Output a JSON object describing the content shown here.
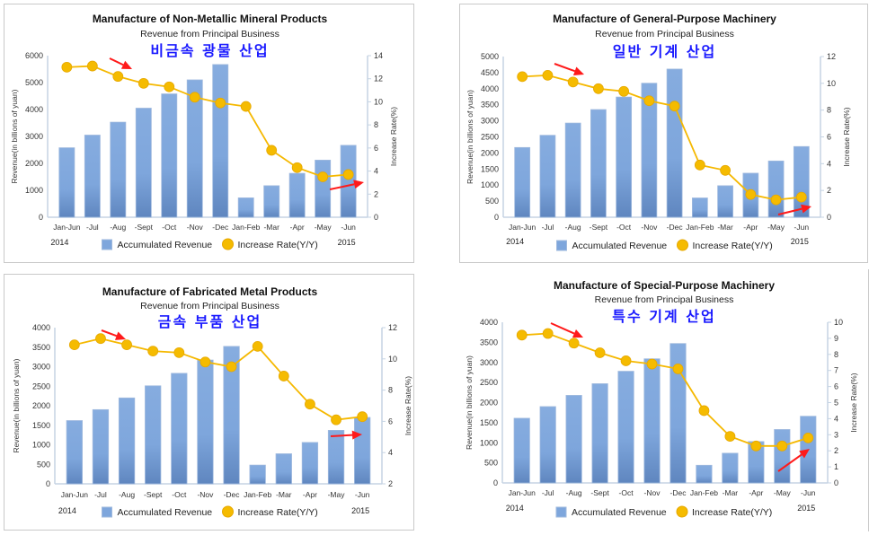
{
  "legend": {
    "bar_label": "Accumulated Revenue",
    "line_label": "Increase Rate(Y/Y)"
  },
  "colors": {
    "bar": "#7ea6dc",
    "bar_dark": "#5f86bf",
    "line": "#f5b800",
    "arrow": "#ff1a1a",
    "axis": "#c5d3e3",
    "korean_title": "#1a1aff"
  },
  "chart_data": [
    {
      "type": "bar+line",
      "title": "Manufacture of Non-Metallic Mineral Products",
      "subtitle": "Revenue from Principal Business",
      "korean_label": "비금속 광물 산업",
      "categories": [
        "Jan-Jun",
        "-Jul",
        "-Aug",
        "-Sept",
        "-Oct",
        "-Nov",
        "-Dec",
        "Jan-Feb",
        "-Mar",
        "-Apr",
        "-May",
        "-Jun"
      ],
      "year_labels": [
        "2014",
        "2015"
      ],
      "ylabel": "Revenue(in billions of yuan)",
      "y2label": "Increase Rate(%)",
      "ylim": [
        0,
        6000
      ],
      "yticks": [
        0,
        1000,
        2000,
        3000,
        4000,
        5000,
        6000
      ],
      "y2lim": [
        0,
        14
      ],
      "y2ticks": [
        0,
        2,
        4,
        6,
        8,
        10,
        12,
        14
      ],
      "series": [
        {
          "name": "Accumulated Revenue",
          "type": "bar",
          "values": [
            2580,
            3050,
            3530,
            4050,
            4580,
            5100,
            5670,
            720,
            1170,
            1630,
            2120,
            2670
          ]
        },
        {
          "name": "Increase Rate(Y/Y)",
          "type": "line",
          "axis": "right",
          "values": [
            13.0,
            13.1,
            12.2,
            11.6,
            11.3,
            10.4,
            9.9,
            9.6,
            5.8,
            4.3,
            3.5,
            3.7
          ]
        }
      ],
      "annotations": [
        "red arrow pointing down-right near -Aug",
        "red arrow pointing right near -Jun"
      ]
    },
    {
      "type": "bar+line",
      "title": "Manufacture of General-Purpose Machinery",
      "subtitle": "Revenue from Principal Business",
      "korean_label": "일반 기계 산업",
      "categories": [
        "Jan-Jun",
        "-Jul",
        "-Aug",
        "-Sept",
        "-Oct",
        "-Nov",
        "-Dec",
        "Jan-Feb",
        "-Mar",
        "-Apr",
        "-May",
        "-Jun"
      ],
      "year_labels": [
        "2014",
        "2015"
      ],
      "ylabel": "Revenue(in billions of yuan)",
      "y2label": "Increase Rate(%)",
      "ylim": [
        0,
        5000
      ],
      "yticks": [
        0,
        500,
        1000,
        1500,
        2000,
        2500,
        3000,
        3500,
        4000,
        4500,
        5000
      ],
      "y2lim": [
        0,
        12
      ],
      "y2ticks": [
        0,
        2,
        4,
        6,
        8,
        10,
        12
      ],
      "series": [
        {
          "name": "Accumulated Revenue",
          "type": "bar",
          "values": [
            2170,
            2550,
            2930,
            3350,
            3740,
            4170,
            4610,
            600,
            980,
            1370,
            1750,
            2200
          ]
        },
        {
          "name": "Increase Rate(Y/Y)",
          "type": "line",
          "axis": "right",
          "values": [
            10.5,
            10.6,
            10.1,
            9.6,
            9.4,
            8.7,
            8.3,
            3.9,
            3.5,
            1.7,
            1.3,
            1.5
          ]
        }
      ],
      "annotations": [
        "red arrow pointing down-right near -Aug",
        "red arrow pointing right near -Jun"
      ]
    },
    {
      "type": "bar+line",
      "title": "Manufacture of Fabricated Metal Products",
      "subtitle": "Revenue from Principal Business",
      "korean_label": "금속 부품 산업",
      "categories": [
        "Jan-Jun",
        "-Jul",
        "-Aug",
        "-Sept",
        "-Oct",
        "-Nov",
        "-Dec",
        "Jan-Feb",
        "-Mar",
        "-Apr",
        "-May",
        "-Jun"
      ],
      "year_labels": [
        "2014",
        "2015"
      ],
      "ylabel": "Revenue(in billions of yuan)",
      "y2label": "Increase Rate(%)",
      "ylim": [
        0,
        4000
      ],
      "yticks": [
        0,
        500,
        1000,
        1500,
        2000,
        2500,
        3000,
        3500,
        4000
      ],
      "y2lim": [
        2,
        12
      ],
      "y2ticks": [
        2,
        4,
        6,
        8,
        10,
        12
      ],
      "series": [
        {
          "name": "Accumulated Revenue",
          "type": "bar",
          "values": [
            1620,
            1900,
            2200,
            2510,
            2830,
            3170,
            3520,
            480,
            770,
            1060,
            1370,
            1700
          ]
        },
        {
          "name": "Increase Rate(Y/Y)",
          "type": "line",
          "axis": "right",
          "values": [
            10.9,
            11.3,
            10.9,
            10.5,
            10.4,
            9.8,
            9.5,
            10.8,
            8.9,
            7.1,
            6.1,
            6.3
          ]
        }
      ],
      "annotations": [
        "red arrow pointing down-right near -Aug",
        "red arrow pointing right near -Jun"
      ]
    },
    {
      "type": "bar+line",
      "title": "Manufacture of Special-Purpose Machinery",
      "subtitle": "Revenue from Principal Business",
      "korean_label": "특수 기계 산업",
      "categories": [
        "Jan-Jun",
        "-Jul",
        "-Aug",
        "-Sept",
        "-Oct",
        "-Nov",
        "-Dec",
        "Jan-Feb",
        "-Mar",
        "-Apr",
        "-May",
        "-Jun"
      ],
      "year_labels": [
        "2014",
        "2015"
      ],
      "ylabel": "Revenue(in billions of yuan)",
      "y2label": "Increase Rate(%)",
      "ylim": [
        0,
        4000
      ],
      "yticks": [
        0,
        500,
        1000,
        1500,
        2000,
        2500,
        3000,
        3500,
        4000
      ],
      "y2lim": [
        0,
        10
      ],
      "y2ticks": [
        0,
        1,
        2,
        3,
        4,
        5,
        6,
        7,
        8,
        9,
        10
      ],
      "series": [
        {
          "name": "Accumulated Revenue",
          "type": "bar",
          "values": [
            1610,
            1900,
            2180,
            2470,
            2780,
            3090,
            3470,
            440,
            740,
            1030,
            1330,
            1660
          ]
        },
        {
          "name": "Increase Rate(Y/Y)",
          "type": "line",
          "axis": "right",
          "values": [
            9.2,
            9.3,
            8.7,
            8.1,
            7.6,
            7.4,
            7.1,
            4.5,
            2.9,
            2.3,
            2.3,
            2.8
          ]
        }
      ],
      "annotations": [
        "red arrow pointing down-right near -Aug",
        "red arrow pointing up-right near -Jun"
      ]
    }
  ]
}
